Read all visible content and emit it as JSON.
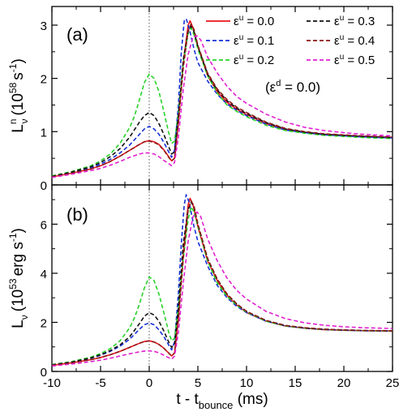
{
  "chart_data": [
    {
      "type": "line",
      "panel_label": "(a)",
      "ylabel_main": "L",
      "ylabel_sup": "n",
      "ylabel_sub": "ν",
      "ylabel_units": "(10",
      "ylabel_exp": "58",
      "ylabel_units2": "s",
      "ylabel_exp2": "-1",
      "ylabel_close": ")",
      "annotation": "(ε",
      "annotation_sup": "d",
      "annotation_rest": " = 0.0)",
      "xlim": [
        -10,
        25
      ],
      "ylim": [
        0,
        3.35
      ],
      "yticks": [
        0,
        1,
        2,
        3
      ],
      "legend_placement": "top-right",
      "series": [
        {
          "name": "ε^u = 0.0",
          "label_main": "ε",
          "label_sup": "u",
          "label_rest": " = 0.0",
          "color": "#e8141c",
          "dash": "solid",
          "x": [
            -10,
            -8,
            -6,
            -5,
            -4,
            -3,
            -2,
            -1,
            -0.5,
            0,
            0.5,
            1,
            1.5,
            2,
            2.3,
            2.6,
            3,
            3.5,
            4,
            4.2,
            4.5,
            5,
            6,
            7,
            8,
            9,
            10,
            12,
            14,
            16,
            18,
            20,
            22,
            25
          ],
          "y": [
            0.15,
            0.22,
            0.3,
            0.36,
            0.44,
            0.54,
            0.65,
            0.76,
            0.81,
            0.83,
            0.81,
            0.76,
            0.66,
            0.53,
            0.45,
            0.5,
            1.2,
            2.3,
            3.0,
            3.08,
            2.95,
            2.6,
            2.05,
            1.75,
            1.55,
            1.42,
            1.32,
            1.15,
            1.04,
            0.99,
            0.95,
            0.93,
            0.91,
            0.89
          ]
        },
        {
          "name": "ε^u = 0.1",
          "label_main": "ε",
          "label_sup": "u",
          "label_rest": " = 0.1",
          "color": "#1530d8",
          "dash": "5,3",
          "x": [
            -10,
            -8,
            -6,
            -5,
            -4,
            -3,
            -2,
            -1,
            -0.5,
            0,
            0.5,
            1,
            1.5,
            2,
            2.3,
            2.6,
            3,
            3.3,
            3.6,
            3.8,
            4.1,
            4.6,
            5,
            6,
            7,
            8,
            9,
            10,
            12,
            14,
            16,
            18,
            20,
            22,
            25
          ],
          "y": [
            0.16,
            0.23,
            0.32,
            0.39,
            0.48,
            0.6,
            0.75,
            0.95,
            1.05,
            1.1,
            1.05,
            0.95,
            0.8,
            0.62,
            0.52,
            0.65,
            1.5,
            2.5,
            3.08,
            3.12,
            2.95,
            2.55,
            2.3,
            1.95,
            1.7,
            1.52,
            1.4,
            1.3,
            1.14,
            1.03,
            0.98,
            0.94,
            0.92,
            0.9,
            0.88
          ]
        },
        {
          "name": "ε^u = 0.2",
          "label_main": "ε",
          "label_sup": "u",
          "label_rest": " = 0.2",
          "color": "#28d228",
          "dash": "5,3",
          "x": [
            -10,
            -8,
            -6,
            -5,
            -4,
            -3,
            -2,
            -1.5,
            -1,
            -0.5,
            0,
            0.5,
            1,
            1.5,
            2,
            2.3,
            2.6,
            3,
            3.5,
            4,
            4.3,
            4.6,
            5,
            6,
            7,
            8,
            9,
            10,
            12,
            14,
            16,
            18,
            20,
            22,
            25
          ],
          "y": [
            0.17,
            0.25,
            0.36,
            0.45,
            0.58,
            0.78,
            1.08,
            1.3,
            1.6,
            1.92,
            2.08,
            2.0,
            1.75,
            1.38,
            0.98,
            0.78,
            0.82,
            1.35,
            2.3,
            2.85,
            2.95,
            2.82,
            2.55,
            2.05,
            1.72,
            1.5,
            1.38,
            1.28,
            1.12,
            1.02,
            0.97,
            0.93,
            0.91,
            0.89,
            0.87
          ]
        },
        {
          "name": "ε^u = 0.3",
          "label_main": "ε",
          "label_sup": "u",
          "label_rest": " = 0.3",
          "color": "#111111",
          "dash": "5,3",
          "x": [
            -10,
            -8,
            -6,
            -5,
            -4,
            -3,
            -2,
            -1,
            -0.5,
            0,
            0.5,
            1,
            1.5,
            2,
            2.3,
            2.6,
            3,
            3.5,
            4,
            4.3,
            4.6,
            5,
            6,
            7,
            8,
            9,
            10,
            12,
            14,
            16,
            18,
            20,
            22,
            25
          ],
          "y": [
            0.16,
            0.24,
            0.34,
            0.42,
            0.53,
            0.68,
            0.9,
            1.18,
            1.3,
            1.36,
            1.3,
            1.15,
            0.95,
            0.72,
            0.58,
            0.62,
            1.3,
            2.35,
            2.88,
            2.98,
            2.88,
            2.6,
            2.08,
            1.78,
            1.58,
            1.44,
            1.34,
            1.17,
            1.05,
            0.99,
            0.95,
            0.93,
            0.91,
            0.89
          ]
        },
        {
          "name": "ε^u = 0.4",
          "label_main": "ε",
          "label_sup": "u",
          "label_rest": " = 0.4",
          "color": "#8c1818",
          "dash": "5,3",
          "x": [
            -10,
            -8,
            -6,
            -5,
            -4,
            -3,
            -2,
            -1,
            -0.5,
            0,
            0.5,
            1,
            1.5,
            2,
            2.3,
            2.6,
            3,
            3.5,
            4,
            4.3,
            4.6,
            5,
            6,
            7,
            8,
            9,
            10,
            12,
            14,
            16,
            18,
            20,
            22,
            25
          ],
          "y": [
            0.15,
            0.22,
            0.3,
            0.36,
            0.44,
            0.54,
            0.65,
            0.76,
            0.81,
            0.82,
            0.8,
            0.75,
            0.65,
            0.52,
            0.45,
            0.5,
            1.15,
            2.2,
            2.9,
            3.02,
            2.92,
            2.62,
            2.1,
            1.8,
            1.6,
            1.46,
            1.36,
            1.18,
            1.06,
            1.0,
            0.96,
            0.94,
            0.92,
            0.9
          ]
        },
        {
          "name": "ε^u = 0.5",
          "label_main": "ε",
          "label_sup": "u",
          "label_rest": " = 0.5",
          "color": "#e020d0",
          "dash": "5,3",
          "x": [
            -10,
            -8,
            -6,
            -5,
            -4,
            -3,
            -2,
            -1,
            -0.5,
            0,
            0.5,
            1,
            1.5,
            2,
            2.3,
            2.6,
            3,
            3.5,
            4,
            4.5,
            4.9,
            5.3,
            6,
            7,
            8,
            9,
            10,
            12,
            14,
            16,
            18,
            20,
            22,
            25
          ],
          "y": [
            0.14,
            0.2,
            0.27,
            0.31,
            0.37,
            0.44,
            0.52,
            0.58,
            0.6,
            0.6,
            0.58,
            0.53,
            0.46,
            0.4,
            0.36,
            0.42,
            0.9,
            1.8,
            2.45,
            2.78,
            2.8,
            2.72,
            2.4,
            2.1,
            1.85,
            1.66,
            1.53,
            1.33,
            1.18,
            1.08,
            1.02,
            0.98,
            0.95,
            0.92
          ]
        }
      ]
    },
    {
      "type": "line",
      "panel_label": "(b)",
      "ylabel_main": "L",
      "ylabel_sup": "",
      "ylabel_sub": "ν",
      "ylabel_units": "(10",
      "ylabel_exp": "53",
      "ylabel_units2": "erg s",
      "ylabel_exp2": "-1",
      "ylabel_close": ")",
      "xlabel_main": "t - t",
      "xlabel_sub": "bounce",
      "xlabel_units": " (ms)",
      "xlim": [
        -10,
        25
      ],
      "xticks": [
        -10,
        -5,
        0,
        5,
        10,
        15,
        20,
        25
      ],
      "ylim": [
        0,
        7.6
      ],
      "yticks": [
        0,
        2,
        4,
        6
      ],
      "series": [
        {
          "name": "ε^u = 0.0",
          "color": "#e8141c",
          "dash": "solid",
          "x": [
            -10,
            -8,
            -6,
            -5,
            -4,
            -3,
            -2,
            -1,
            -0.5,
            0,
            0.5,
            1,
            1.5,
            2,
            2.3,
            2.6,
            3,
            3.5,
            4,
            4.2,
            4.5,
            5,
            6,
            7,
            8,
            9,
            10,
            12,
            14,
            16,
            18,
            20,
            22,
            25
          ],
          "y": [
            0.25,
            0.35,
            0.48,
            0.57,
            0.68,
            0.82,
            0.98,
            1.15,
            1.22,
            1.25,
            1.2,
            1.1,
            0.95,
            0.75,
            0.63,
            0.75,
            2.2,
            4.8,
            6.8,
            7.05,
            6.8,
            5.9,
            4.5,
            3.7,
            3.1,
            2.7,
            2.4,
            2.05,
            1.85,
            1.76,
            1.7,
            1.68,
            1.66,
            1.65
          ]
        },
        {
          "name": "ε^u = 0.1",
          "color": "#1530d8",
          "dash": "5,3",
          "x": [
            -10,
            -8,
            -6,
            -5,
            -4,
            -3,
            -2,
            -1,
            -0.5,
            0,
            0.5,
            1,
            1.5,
            2,
            2.3,
            2.6,
            3,
            3.3,
            3.6,
            3.8,
            4.1,
            4.6,
            5,
            6,
            7,
            8,
            9,
            10,
            12,
            14,
            16,
            18,
            20,
            22,
            25
          ],
          "y": [
            0.27,
            0.38,
            0.54,
            0.66,
            0.82,
            1.03,
            1.32,
            1.72,
            1.9,
            1.98,
            1.9,
            1.7,
            1.42,
            1.08,
            0.88,
            1.2,
            3.2,
            5.2,
            6.8,
            7.2,
            6.9,
            5.9,
            5.3,
            4.3,
            3.5,
            3.0,
            2.65,
            2.4,
            2.05,
            1.85,
            1.76,
            1.71,
            1.68,
            1.66,
            1.65
          ]
        },
        {
          "name": "ε^u = 0.2",
          "color": "#28d228",
          "dash": "5,3",
          "x": [
            -10,
            -8,
            -6,
            -5,
            -4,
            -3,
            -2,
            -1.5,
            -1,
            -0.5,
            0,
            0.5,
            1,
            1.5,
            2,
            2.3,
            2.6,
            3,
            3.5,
            4,
            4.3,
            4.6,
            5,
            6,
            7,
            8,
            9,
            10,
            12,
            14,
            16,
            18,
            20,
            22,
            25
          ],
          "y": [
            0.28,
            0.4,
            0.58,
            0.73,
            0.93,
            1.25,
            1.78,
            2.2,
            2.75,
            3.4,
            3.85,
            3.7,
            3.15,
            2.4,
            1.6,
            1.25,
            1.35,
            2.6,
            4.6,
            6.2,
            6.7,
            6.5,
            5.9,
            4.5,
            3.6,
            3.05,
            2.7,
            2.42,
            2.05,
            1.85,
            1.76,
            1.71,
            1.68,
            1.66,
            1.65
          ]
        },
        {
          "name": "ε^u = 0.3",
          "color": "#111111",
          "dash": "5,3",
          "x": [
            -10,
            -8,
            -6,
            -5,
            -4,
            -3,
            -2,
            -1,
            -0.5,
            0,
            0.5,
            1,
            1.5,
            2,
            2.3,
            2.6,
            3,
            3.5,
            4,
            4.3,
            4.6,
            5,
            6,
            7,
            8,
            9,
            10,
            12,
            14,
            16,
            18,
            20,
            22,
            25
          ],
          "y": [
            0.27,
            0.38,
            0.55,
            0.68,
            0.85,
            1.08,
            1.42,
            1.95,
            2.25,
            2.4,
            2.3,
            2.05,
            1.65,
            1.2,
            0.98,
            1.1,
            2.6,
            5.2,
            6.6,
            6.9,
            6.7,
            6.0,
            4.6,
            3.75,
            3.15,
            2.75,
            2.45,
            2.08,
            1.87,
            1.77,
            1.72,
            1.69,
            1.67,
            1.65
          ]
        },
        {
          "name": "ε^u = 0.4",
          "color": "#8c1818",
          "dash": "5,3",
          "x": [
            -10,
            -8,
            -6,
            -5,
            -4,
            -3,
            -2,
            -1,
            -0.5,
            0,
            0.5,
            1,
            1.5,
            2,
            2.3,
            2.6,
            3,
            3.5,
            4,
            4.3,
            4.6,
            5,
            6,
            7,
            8,
            9,
            10,
            12,
            14,
            16,
            18,
            20,
            22,
            25
          ],
          "y": [
            0.25,
            0.35,
            0.48,
            0.57,
            0.68,
            0.82,
            0.98,
            1.15,
            1.22,
            1.24,
            1.2,
            1.1,
            0.95,
            0.75,
            0.63,
            0.75,
            2.1,
            4.6,
            6.6,
            6.95,
            6.75,
            6.0,
            4.6,
            3.75,
            3.15,
            2.75,
            2.45,
            2.08,
            1.87,
            1.78,
            1.72,
            1.69,
            1.67,
            1.66
          ]
        },
        {
          "name": "ε^u = 0.5",
          "color": "#e020d0",
          "dash": "5,3",
          "x": [
            -10,
            -8,
            -6,
            -5,
            -4,
            -3,
            -2,
            -1,
            -0.5,
            0,
            0.5,
            1,
            1.5,
            2,
            2.3,
            2.6,
            3,
            3.5,
            4,
            4.5,
            4.9,
            5.3,
            6,
            7,
            8,
            9,
            10,
            12,
            14,
            16,
            18,
            20,
            22,
            25
          ],
          "y": [
            0.22,
            0.3,
            0.4,
            0.46,
            0.54,
            0.63,
            0.72,
            0.8,
            0.83,
            0.84,
            0.82,
            0.76,
            0.66,
            0.56,
            0.5,
            0.62,
            1.6,
            3.6,
            5.3,
            6.3,
            6.5,
            6.3,
            5.4,
            4.5,
            3.8,
            3.3,
            2.95,
            2.45,
            2.15,
            1.98,
            1.88,
            1.82,
            1.78,
            1.75
          ]
        }
      ]
    }
  ]
}
